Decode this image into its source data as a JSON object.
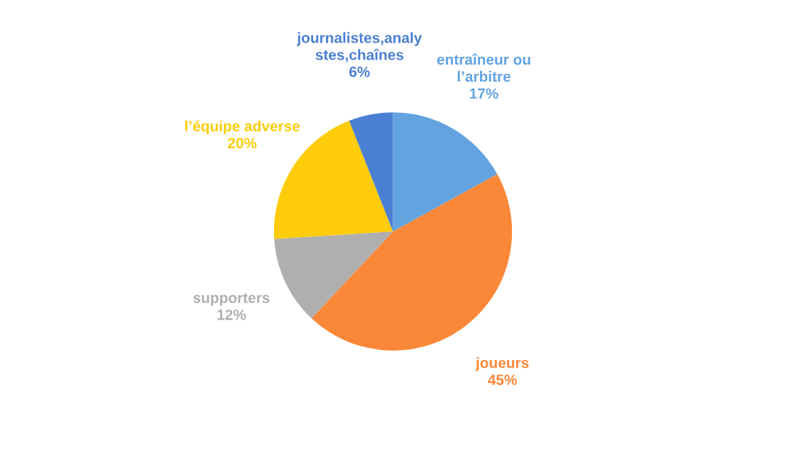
{
  "chart_data": {
    "type": "pie",
    "categories": [
      "entraîneur ou\nl’arbitre",
      "joueurs",
      "supporters",
      "l’équipe adverse",
      "journalistes,analy\nstes,chaînes"
    ],
    "values": [
      17,
      45,
      12,
      20,
      6
    ],
    "value_labels": [
      "17%",
      "45%",
      "12%",
      "20%",
      "6%"
    ],
    "colors": [
      "#62a3e0",
      "#fb8838",
      "#afafaf",
      "#fecc0a",
      "#4a7fd4"
    ],
    "legend": false
  }
}
